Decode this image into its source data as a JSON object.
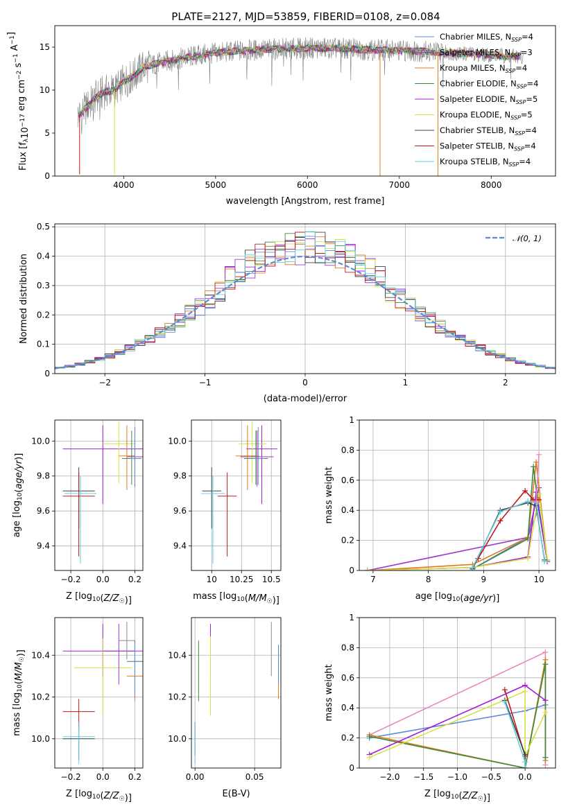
{
  "page_title": "PLATE=2127, MJD=53859, FIBERID=0108, z=0.084",
  "colors": {
    "Chabrier MILES": "#5b8ad8",
    "Salpeter MILES": "#9a38c8",
    "Kroupa MILES": "#e07b1a",
    "Chabrier ELODIE": "#3c8a3c",
    "Salpeter ELODIE": "#a020d0",
    "Kroupa ELODIE": "#d8e040",
    "Chabrier STELIB": "#404040",
    "Salpeter STELIB": "#c01818",
    "Kroupa STELIB": "#60d0e0",
    "normal": "#5b8ad8",
    "data": "#808080",
    "grid": "#b0b0b0"
  },
  "chart_data": [
    {
      "id": "spectrum",
      "type": "line",
      "title": "PLATE=2127, MJD=53859, FIBERID=0108, z=0.084",
      "xlabel": "wavelength [Angstrom, rest frame]",
      "ylabel": "Flux [f_λ 10^-17 erg cm^-2 s^-1 A^-1]",
      "xlim": [
        3250,
        8700
      ],
      "ylim": [
        0,
        17.5
      ],
      "xticks": [
        4000,
        5000,
        6000,
        7000,
        8000
      ],
      "yticks": [
        0,
        5,
        10,
        15
      ],
      "grid": false,
      "legend_position": "right",
      "legend": [
        "Chabrier MILES, N_SSP=4",
        "Salpeter MILES, N_SSP=3",
        "Kroupa MILES, N_SSP=4",
        "Chabrier ELODIE, N_SSP=4",
        "Salpeter ELODIE, N_SSP=5",
        "Kroupa ELODIE, N_SSP=5",
        "Chabrier STELIB, N_SSP=4",
        "Salpeter STELIB, N_SSP=4",
        "Kroupa STELIB, N_SSP=4"
      ],
      "continuum": {
        "x": [
          3500,
          3600,
          3700,
          3800,
          3900,
          4000,
          4100,
          4200,
          4400,
          4600,
          4800,
          5000,
          5200,
          5500,
          5800,
          6100,
          6400,
          6700,
          7000,
          7300,
          7600,
          8000,
          8300
        ],
        "y": [
          7.0,
          8.0,
          9.2,
          9.8,
          10.0,
          11.0,
          11.6,
          12.6,
          13.2,
          13.6,
          14.0,
          14.3,
          14.5,
          14.7,
          14.8,
          14.9,
          14.8,
          14.7,
          14.6,
          14.5,
          14.3,
          14.1,
          13.9
        ]
      },
      "spikes": [
        {
          "x": 3520,
          "y": 0.2
        },
        {
          "x": 3900,
          "y": 0.1
        },
        {
          "x": 6790,
          "y": 0.0
        },
        {
          "x": 7420,
          "y": 0.0
        }
      ]
    },
    {
      "id": "residual_distribution",
      "type": "line",
      "xlabel": "(data-model)/error",
      "ylabel": "Normed distribution",
      "xlim": [
        -2.5,
        2.5
      ],
      "ylim": [
        0,
        0.51
      ],
      "xticks": [
        -2,
        -1,
        0,
        1,
        2
      ],
      "yticks": [
        0.0,
        0.1,
        0.2,
        0.3,
        0.4,
        0.5
      ],
      "grid": true,
      "legend_position": "top-right",
      "legend": [
        "𝒩(0, 1)"
      ],
      "series": [
        {
          "name": "𝒩(0, 1)",
          "kind": "gaussian",
          "mean": 0,
          "sigma": 1
        }
      ],
      "histogram_bin_width": 0.1
    },
    {
      "id": "age_vs_Z",
      "type": "scatter",
      "xlabel": "Z [log10(Z/Z☉)]",
      "ylabel": "age [log10(age/yr)]",
      "xlim": [
        -0.3,
        0.25
      ],
      "ylim": [
        9.26,
        10.12
      ],
      "xticks": [
        -0.2,
        0.0,
        0.2
      ],
      "xtick_labels": [
        "−0.2",
        "0.0",
        "0.2"
      ],
      "yticks": [
        9.4,
        9.6,
        9.8,
        10.0
      ],
      "grid": true,
      "points": [
        {
          "model": "Salpeter ELODIE",
          "x": 0.0,
          "xerr": 0.25,
          "y": 9.955,
          "ylo": 9.64,
          "yhi": 10.09
        },
        {
          "model": "Kroupa ELODIE",
          "x": 0.1,
          "xerr": 0.1,
          "y": 9.985,
          "ylo": 9.76,
          "yhi": 10.11
        },
        {
          "model": "Salpeter MILES",
          "x": 0.2,
          "xerr": 0.05,
          "y": 9.91,
          "ylo": 9.74,
          "yhi": 10.06
        },
        {
          "model": "Kroupa MILES",
          "x": 0.15,
          "xerr": 0.05,
          "y": 9.915,
          "ylo": 9.72,
          "yhi": 10.09
        },
        {
          "model": "Chabrier ELODIE",
          "x": 0.18,
          "xerr": 0.06,
          "y": 9.9,
          "ylo": 9.75,
          "yhi": 10.06
        },
        {
          "model": "Chabrier MILES",
          "x": 0.2,
          "xerr": 0.03,
          "y": 9.9,
          "ylo": 9.75,
          "yhi": 10.08
        },
        {
          "model": "Chabrier STELIB",
          "x": -0.15,
          "xerr": 0.1,
          "y": 9.715,
          "ylo": 9.5,
          "yhi": 9.85
        },
        {
          "model": "Salpeter STELIB",
          "x": -0.15,
          "xerr": 0.1,
          "y": 9.685,
          "ylo": 9.34,
          "yhi": 9.82
        },
        {
          "model": "Kroupa STELIB",
          "x": -0.14,
          "xerr": 0.1,
          "y": 9.7,
          "ylo": 9.3,
          "yhi": 9.8
        }
      ]
    },
    {
      "id": "age_vs_mass",
      "type": "scatter",
      "xlabel": "mass [log10(M/M☉)]",
      "xlim": [
        9.83,
        10.58
      ],
      "ylim": [
        9.26,
        10.12
      ],
      "xticks": [
        10.0,
        10.25,
        10.5
      ],
      "yticks": [
        9.4,
        9.6,
        9.8,
        10.0
      ],
      "grid": true,
      "points": [
        {
          "model": "Salpeter ELODIE",
          "x": 10.42,
          "xerr": 0.13,
          "y": 9.955,
          "ylo": 9.64,
          "yhi": 10.09
        },
        {
          "model": "Kroupa ELODIE",
          "x": 10.34,
          "xerr": 0.12,
          "y": 9.985,
          "ylo": 9.76,
          "yhi": 10.11
        },
        {
          "model": "Salpeter MILES",
          "x": 10.38,
          "xerr": 0.14,
          "y": 9.91,
          "ylo": 9.74,
          "yhi": 10.06
        },
        {
          "model": "Kroupa MILES",
          "x": 10.3,
          "xerr": 0.1,
          "y": 9.915,
          "ylo": 9.72,
          "yhi": 10.09
        },
        {
          "model": "Chabrier ELODIE",
          "x": 10.37,
          "xerr": 0.1,
          "y": 9.9,
          "ylo": 9.75,
          "yhi": 10.06
        },
        {
          "model": "Chabrier MILES",
          "x": 10.39,
          "xerr": 0.05,
          "y": 9.9,
          "ylo": 9.75,
          "yhi": 10.08
        },
        {
          "model": "Chabrier STELIB",
          "x": 10.0,
          "xerr": 0.08,
          "y": 9.715,
          "ylo": 9.5,
          "yhi": 9.85
        },
        {
          "model": "Salpeter STELIB",
          "x": 10.13,
          "xerr": 0.08,
          "y": 9.685,
          "ylo": 9.34,
          "yhi": 9.82
        },
        {
          "model": "Kroupa STELIB",
          "x": 10.01,
          "xerr": 0.1,
          "y": 9.7,
          "ylo": 9.3,
          "yhi": 9.8
        }
      ]
    },
    {
      "id": "weight_vs_age",
      "type": "line",
      "xlabel": "age [log10(age/yr)]",
      "ylabel": "mass weight",
      "xlim": [
        6.75,
        10.3
      ],
      "ylim": [
        0,
        1.0
      ],
      "xticks": [
        7,
        8,
        9,
        10
      ],
      "yticks": [
        0.0,
        0.2,
        0.4,
        0.6,
        0.8,
        1.0
      ],
      "grid": true,
      "series": [
        {
          "name": "Chabrier MILES",
          "x": [
            8.8,
            9.8,
            10.0,
            10.15
          ],
          "y": [
            0.01,
            0.22,
            0.42,
            0.07
          ]
        },
        {
          "name": "Salpeter MILES",
          "x": [
            6.9,
            9.8,
            10.0
          ],
          "y": [
            0.0,
            0.22,
            0.55
          ]
        },
        {
          "name": "Kroupa MILES",
          "x": [
            6.9,
            8.8,
            9.8,
            9.95,
            10.15
          ],
          "y": [
            0.0,
            0.04,
            0.22,
            0.72,
            0.07
          ]
        },
        {
          "name": "Chabrier ELODIE",
          "x": [
            8.8,
            9.8,
            9.9,
            10.0,
            10.15
          ],
          "y": [
            0.01,
            0.21,
            0.69,
            0.4,
            0.07
          ]
        },
        {
          "name": "Salpeter ELODIE",
          "x": [
            6.9,
            8.8,
            9.8,
            9.95,
            10.15
          ],
          "y": [
            0.0,
            0.02,
            0.09,
            0.52,
            0.06
          ]
        },
        {
          "name": "Kroupa ELODIE",
          "x": [
            6.9,
            8.8,
            9.8,
            10.0,
            10.15
          ],
          "y": [
            0.0,
            0.02,
            0.08,
            0.51,
            0.07
          ]
        },
        {
          "name": "Chabrier STELIB",
          "x": [
            8.8,
            9.3,
            9.8,
            9.95,
            10.1
          ],
          "y": [
            0.01,
            0.4,
            0.45,
            0.43,
            0.07
          ]
        },
        {
          "name": "Salpeter STELIB",
          "x": [
            8.9,
            9.3,
            9.75,
            9.9,
            10.0
          ],
          "y": [
            0.08,
            0.33,
            0.53,
            0.47,
            0.47
          ]
        },
        {
          "name": "Kroupa STELIB",
          "x": [
            8.8,
            9.3,
            9.8,
            9.95,
            10.1
          ],
          "y": [
            0.02,
            0.39,
            0.46,
            0.45,
            0.06
          ]
        },
        {
          "name": "pink",
          "x": [
            9.95,
            10.0
          ],
          "y": [
            0.46,
            0.77
          ]
        }
      ]
    },
    {
      "id": "mass_vs_Z",
      "type": "scatter",
      "xlabel": "Z [log10(Z/Z☉)]",
      "ylabel": "mass [log10(M/M☉)]",
      "xlim": [
        -0.3,
        0.25
      ],
      "ylim": [
        9.86,
        10.58
      ],
      "xticks": [
        -0.2,
        0.0,
        0.2
      ],
      "xtick_labels": [
        "−0.2",
        "0.0",
        "0.2"
      ],
      "yticks": [
        10.0,
        10.2,
        10.4
      ],
      "grid": true,
      "points": [
        {
          "model": "Salpeter ELODIE",
          "x": 0.0,
          "xerr": 0.25,
          "y": 10.42,
          "ylo": 10.3,
          "yhi": 10.55
        },
        {
          "model": "Kroupa ELODIE",
          "x": 0.0,
          "xerr": 0.18,
          "y": 10.34,
          "ylo": 10.11,
          "yhi": 10.48
        },
        {
          "model": "Salpeter MILES",
          "x": 0.1,
          "xerr": 0.1,
          "y": 10.42,
          "ylo": 10.26,
          "yhi": 10.55
        },
        {
          "model": "pink",
          "x": 0.15,
          "xerr": 0.05,
          "y": 10.47,
          "ylo": 10.38,
          "yhi": 10.56
        },
        {
          "model": "Kroupa MILES",
          "x": 0.2,
          "xerr": 0.05,
          "y": 10.3,
          "ylo": 10.18,
          "yhi": 10.44
        },
        {
          "model": "Chabrier ELODIE",
          "x": 0.2,
          "xerr": 0.05,
          "y": 10.37,
          "ylo": 10.22,
          "yhi": 10.47
        },
        {
          "model": "Chabrier MILES",
          "x": 0.2,
          "xerr": 0.03,
          "y": 10.37,
          "ylo": 10.2,
          "yhi": 10.46
        },
        {
          "model": "Salpeter STELIB",
          "x": -0.15,
          "xerr": 0.1,
          "y": 10.13,
          "ylo": 10.05,
          "yhi": 10.19
        },
        {
          "model": "Chabrier STELIB",
          "x": -0.15,
          "xerr": 0.1,
          "y": 10.0,
          "ylo": 9.9,
          "yhi": 10.08
        },
        {
          "model": "Kroupa STELIB",
          "x": -0.15,
          "xerr": 0.1,
          "y": 10.01,
          "ylo": 9.88,
          "yhi": 10.08
        }
      ]
    },
    {
      "id": "mass_vs_ebv",
      "type": "scatter",
      "xlabel": "E(B-V)",
      "xlim": [
        -0.003,
        0.072
      ],
      "ylim": [
        9.86,
        10.58
      ],
      "xticks": [
        0.0,
        0.05
      ],
      "xtick_labels": [
        "0.00",
        "0.05"
      ],
      "yticks": [
        10.0,
        10.2,
        10.4
      ],
      "grid": true,
      "points": [
        {
          "model": "Salpeter ELODIE",
          "x": 0.013,
          "ylo": 10.3,
          "yhi": 10.55
        },
        {
          "model": "Kroupa ELODIE",
          "x": 0.013,
          "ylo": 10.11,
          "yhi": 10.49
        },
        {
          "model": "Chabrier ELODIE",
          "x": 0.003,
          "ylo": 10.18,
          "yhi": 10.47
        },
        {
          "model": "Chabrier STELIB",
          "x": 0.0,
          "ylo": 9.92,
          "yhi": 10.08
        },
        {
          "model": "Kroupa STELIB",
          "x": 0.0,
          "ylo": 9.88,
          "yhi": 10.08
        },
        {
          "model": "pink",
          "x": 0.064,
          "ylo": 10.3,
          "yhi": 10.56
        },
        {
          "model": "Kroupa MILES",
          "x": 0.07,
          "ylo": 10.19,
          "yhi": 10.44
        },
        {
          "model": "Chabrier MILES",
          "x": 0.07,
          "ylo": 10.26,
          "yhi": 10.45
        }
      ]
    },
    {
      "id": "weight_vs_Z",
      "type": "line",
      "xlabel": "Z [log10(Z/Z☉)]",
      "ylabel": "mass weight",
      "xlim": [
        -2.45,
        0.45
      ],
      "ylim": [
        0,
        1.0
      ],
      "xticks": [
        -2.0,
        -1.5,
        -1.0,
        -0.5,
        0.0
      ],
      "xtick_labels": [
        "−2.0",
        "−1.5",
        "−1.0",
        "−0.5",
        "0.0"
      ],
      "yticks": [
        0.0,
        0.2,
        0.4,
        0.6,
        0.8,
        1.0
      ],
      "grid": true,
      "series": [
        {
          "name": "Chabrier MILES",
          "x": [
            -2.3,
            0.0,
            0.3,
            0.3
          ],
          "y": [
            0.2,
            0.38,
            0.42,
            0.07
          ]
        },
        {
          "name": "pink",
          "x": [
            -2.3,
            0.3,
            0.3
          ],
          "y": [
            0.22,
            0.77,
            0.02
          ]
        },
        {
          "name": "Kroupa MILES",
          "x": [
            -2.3,
            0.0,
            0.3,
            0.3
          ],
          "y": [
            0.22,
            0.0,
            0.72,
            0.05
          ]
        },
        {
          "name": "Chabrier ELODIE",
          "x": [
            -2.3,
            0.0,
            0.3,
            0.3
          ],
          "y": [
            0.21,
            0.0,
            0.69,
            0.07
          ]
        },
        {
          "name": "Salpeter ELODIE",
          "x": [
            -2.3,
            0.0,
            0.3
          ],
          "y": [
            0.09,
            0.55,
            0.45
          ]
        },
        {
          "name": "Kroupa ELODIE",
          "x": [
            -2.3,
            0.0,
            0.0,
            0.3
          ],
          "y": [
            0.07,
            0.51,
            0.08,
            0.37
          ]
        },
        {
          "name": "Salpeter STELIB",
          "x": [
            -0.3,
            0.0
          ],
          "y": [
            0.52,
            0.08
          ]
        },
        {
          "name": "Chabrier STELIB",
          "x": [
            -0.3,
            0.0,
            0.0
          ],
          "y": [
            0.45,
            0.09,
            0.0
          ]
        },
        {
          "name": "Kroupa STELIB",
          "x": [
            -0.3,
            0.0,
            0.0
          ],
          "y": [
            0.44,
            0.04,
            0.0
          ]
        }
      ]
    }
  ]
}
